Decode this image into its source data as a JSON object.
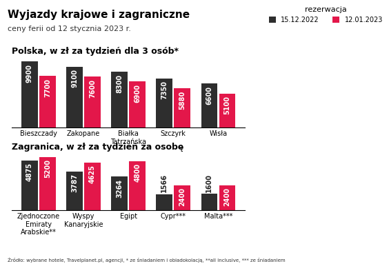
{
  "title": "Wyjazdy krajowe i zagraniczne",
  "subtitle": "ceny ferii od 12 stycznia 2023 r.",
  "note": "Źródło: wybrane hotele, Travelplanet.pl, agencji, * ze śniadaniem i obiadokolacją, **all inclusive, *** ze śniadaniem",
  "chart_data": [
    {
      "type": "bar",
      "title": "Polska, w zł za tydzień dla 3 osób*",
      "categories": [
        "Bieszczady",
        "Zakopane",
        "Białka Tatrzańska",
        "Szczyrk",
        "Wisła"
      ],
      "series": [
        {
          "name": "15.12.2022",
          "color": "#2e2e2e",
          "values": [
            9900,
            9100,
            8300,
            7350,
            6600
          ]
        },
        {
          "name": "12.01.2023",
          "color": "#e3174a",
          "values": [
            7700,
            7600,
            6900,
            5880,
            5100
          ]
        }
      ],
      "ylim": [
        0,
        9900
      ],
      "yticks": [],
      "tick_labels": "x",
      "data_labels": true,
      "legend": "upper right",
      "legend_title": "rezerwacja"
    },
    {
      "type": "bar",
      "title": "Zagranica, w zł za tydzień za osobę",
      "categories": [
        "Zjednoczone Emiraty Arabskie**",
        "Wyspy Kanaryjskie",
        "Egipt",
        "Cypr***",
        "Malta***"
      ],
      "series": [
        {
          "name": "15.12.2022",
          "color": "#2e2e2e",
          "values": [
            4875,
            3787,
            3264,
            1566,
            1600
          ]
        },
        {
          "name": "12.01.2023",
          "color": "#e3174a",
          "values": [
            5200,
            4625,
            4800,
            2400,
            2400
          ]
        }
      ],
      "ylim": [
        0,
        5200
      ],
      "yticks": [],
      "tick_labels": "x",
      "data_labels": true
    }
  ]
}
